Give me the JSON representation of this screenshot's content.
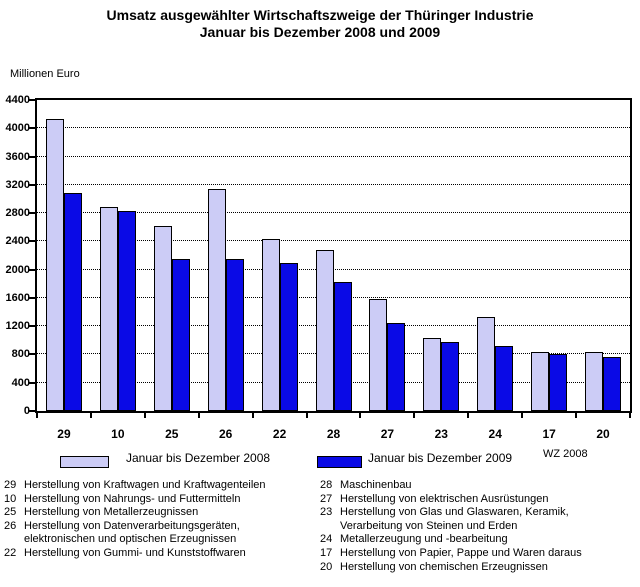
{
  "title": {
    "line1": "Umsatz ausgewählter Wirtschaftszweige der Thüringer Industrie",
    "line2": "Januar bis Dezember 2008 und 2009"
  },
  "axis_unit_label": "Millionen Euro",
  "note_right": "WZ 2008",
  "colors": {
    "series_2008": "#ccccf6",
    "series_2009": "#0a0ae6",
    "bar_outline": "#000000",
    "grid": "#000000"
  },
  "chart_data": {
    "type": "bar",
    "title": "Umsatz ausgewählter Wirtschaftszweige der Thüringer Industrie, Januar bis Dezember 2008 und 2009",
    "xlabel": "",
    "ylabel": "Millionen Euro",
    "ylim": [
      0,
      4400
    ],
    "ytick_step": 400,
    "grid": "horizontal-dotted",
    "legend_position": "bottom",
    "categories": [
      "29",
      "10",
      "25",
      "26",
      "22",
      "28",
      "27",
      "23",
      "24",
      "17",
      "20"
    ],
    "series": [
      {
        "name": "Januar bis Dezember 2008",
        "color": "#ccccf6",
        "values": [
          4130,
          2880,
          2620,
          3140,
          2430,
          2280,
          1580,
          1030,
          1330,
          840,
          840
        ]
      },
      {
        "name": "Januar bis Dezember 2009",
        "color": "#0a0ae6",
        "values": [
          3090,
          2830,
          2150,
          2150,
          2100,
          1820,
          1240,
          970,
          920,
          800,
          760
        ]
      }
    ]
  },
  "legend": {
    "items": [
      {
        "label": "Januar bis Dezember 2008",
        "color": "#ccccf6"
      },
      {
        "label": "Januar bis Dezember 2009",
        "color": "#0a0ae6"
      }
    ]
  },
  "footnotes": {
    "left": [
      {
        "code": "29",
        "text": "Herstellung von Kraftwagen und Kraftwagenteilen"
      },
      {
        "code": "10",
        "text": "Herstellung von Nahrungs- und Futtermitteln"
      },
      {
        "code": "25",
        "text": "Herstellung von Metallerzeugnissen"
      },
      {
        "code": "26",
        "text": "Herstellung von Datenverarbeitungsgeräten,\nelektronischen und optischen Erzeugnissen"
      },
      {
        "code": "22",
        "text": "Herstellung von Gummi- und Kunststoffwaren"
      }
    ],
    "right": [
      {
        "code": "28",
        "text": "Maschinenbau"
      },
      {
        "code": "27",
        "text": "Herstellung von elektrischen Ausrüstungen"
      },
      {
        "code": "23",
        "text": "Herstellung von Glas und Glaswaren, Keramik,\nVerarbeitung von Steinen und Erden"
      },
      {
        "code": "24",
        "text": "Metallerzeugung und -bearbeitung"
      },
      {
        "code": "17",
        "text": "Herstellung von Papier, Pappe und Waren daraus"
      },
      {
        "code": "20",
        "text": "Herstellung von chemischen Erzeugnissen"
      }
    ]
  }
}
